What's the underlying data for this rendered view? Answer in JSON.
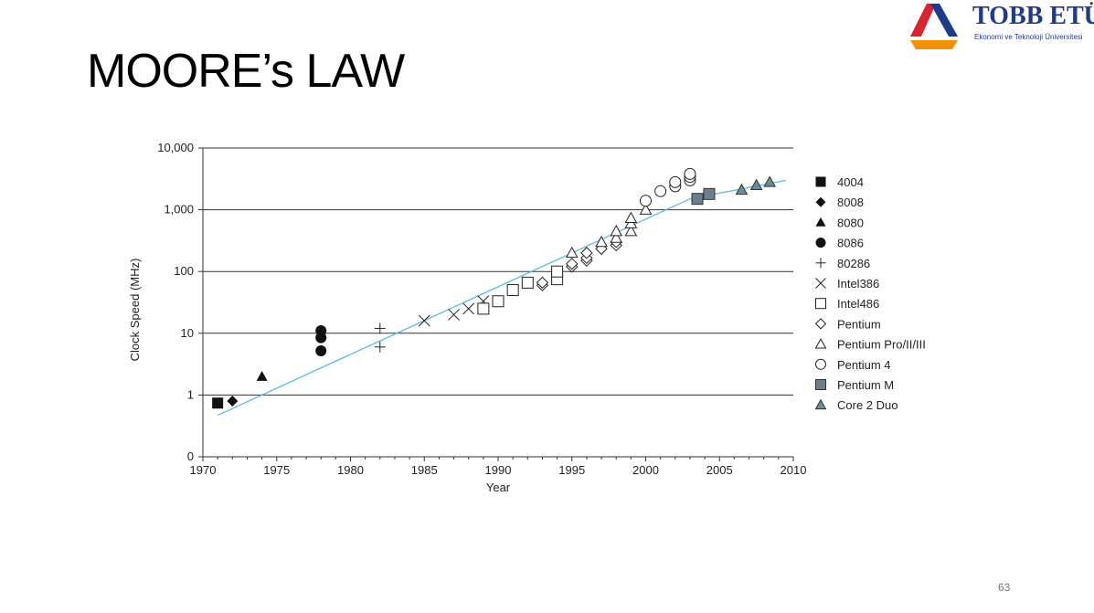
{
  "slide": {
    "title": "MOORE’s LAW",
    "page_number": "63"
  },
  "logo": {
    "name": "TOBB ETÜ",
    "subtitle": "Ekonomi ve Teknoloji Üniversitesi",
    "colors": {
      "red": "#d9232d",
      "orange": "#f39200",
      "blue": "#1f3c88"
    }
  },
  "chart_data": {
    "type": "scatter",
    "xlabel": "Year",
    "ylabel": "Clock Speed (MHz)",
    "xlim": [
      1970,
      2010
    ],
    "x_ticks": [
      "1970",
      "1975",
      "1980",
      "1985",
      "1990",
      "1995",
      "2000",
      "2005",
      "2010"
    ],
    "y_scale": "log",
    "y_ticks": [
      {
        "value": 0.1,
        "label": "0"
      },
      {
        "value": 1,
        "label": "1"
      },
      {
        "value": 10,
        "label": "10"
      },
      {
        "value": 100,
        "label": "100"
      },
      {
        "value": 1000,
        "label": "1,000"
      },
      {
        "value": 10000,
        "label": "10,000"
      }
    ],
    "grid": "horizontal",
    "legend_position": "right",
    "trend_line": {
      "color": "#5bbbe0",
      "points": [
        [
          1971,
          0.47
        ],
        [
          2003,
          1500
        ],
        [
          2009.5,
          3000
        ]
      ]
    },
    "series": [
      {
        "name": "4004",
        "marker": "square-filled",
        "points": [
          [
            1971,
            0.74
          ]
        ]
      },
      {
        "name": "8008",
        "marker": "diamond-filled",
        "points": [
          [
            1972,
            0.8
          ]
        ]
      },
      {
        "name": "8080",
        "marker": "triangle-filled",
        "points": [
          [
            1974,
            2
          ]
        ]
      },
      {
        "name": "8086",
        "marker": "circle-filled",
        "points": [
          [
            1978,
            5.2
          ],
          [
            1978,
            8.5
          ],
          [
            1978,
            11
          ]
        ]
      },
      {
        "name": "80286",
        "marker": "plus",
        "points": [
          [
            1982,
            6
          ],
          [
            1982,
            12
          ]
        ]
      },
      {
        "name": "Intel386",
        "marker": "cross",
        "points": [
          [
            1985,
            16
          ],
          [
            1987,
            20
          ],
          [
            1988,
            25
          ],
          [
            1989,
            33
          ],
          [
            1994,
            90
          ]
        ]
      },
      {
        "name": "Intel486",
        "marker": "square-open",
        "points": [
          [
            1989,
            25
          ],
          [
            1990,
            33
          ],
          [
            1991,
            50
          ],
          [
            1992,
            66
          ],
          [
            1994,
            75
          ],
          [
            1994,
            100
          ]
        ]
      },
      {
        "name": "Pentium",
        "marker": "diamond-open",
        "points": [
          [
            1993,
            60
          ],
          [
            1993,
            66
          ],
          [
            1995,
            120
          ],
          [
            1995,
            133
          ],
          [
            1996,
            150
          ],
          [
            1996,
            166
          ],
          [
            1996,
            200
          ],
          [
            1997,
            233
          ],
          [
            1998,
            266
          ],
          [
            1998,
            300
          ]
        ]
      },
      {
        "name": "Pentium Pro/II/III",
        "marker": "triangle-open",
        "points": [
          [
            1995,
            200
          ],
          [
            1997,
            300
          ],
          [
            1998,
            350
          ],
          [
            1998,
            450
          ],
          [
            1999,
            450
          ],
          [
            1999,
            600
          ],
          [
            1999,
            733
          ],
          [
            2000,
            1000
          ]
        ]
      },
      {
        "name": "Pentium 4",
        "marker": "circle-open",
        "points": [
          [
            2000,
            1400
          ],
          [
            2001,
            2000
          ],
          [
            2002,
            2400
          ],
          [
            2002,
            2800
          ],
          [
            2003,
            3000
          ],
          [
            2003,
            3400
          ],
          [
            2003,
            3800
          ]
        ]
      },
      {
        "name": "Pentium M",
        "marker": "square-gray",
        "points": [
          [
            2003.5,
            1500
          ],
          [
            2004.3,
            1800
          ]
        ]
      },
      {
        "name": "Core 2 Duo",
        "marker": "triangle-gray",
        "points": [
          [
            2006.5,
            2100
          ],
          [
            2007.5,
            2500
          ],
          [
            2008.4,
            2800
          ]
        ]
      }
    ]
  }
}
